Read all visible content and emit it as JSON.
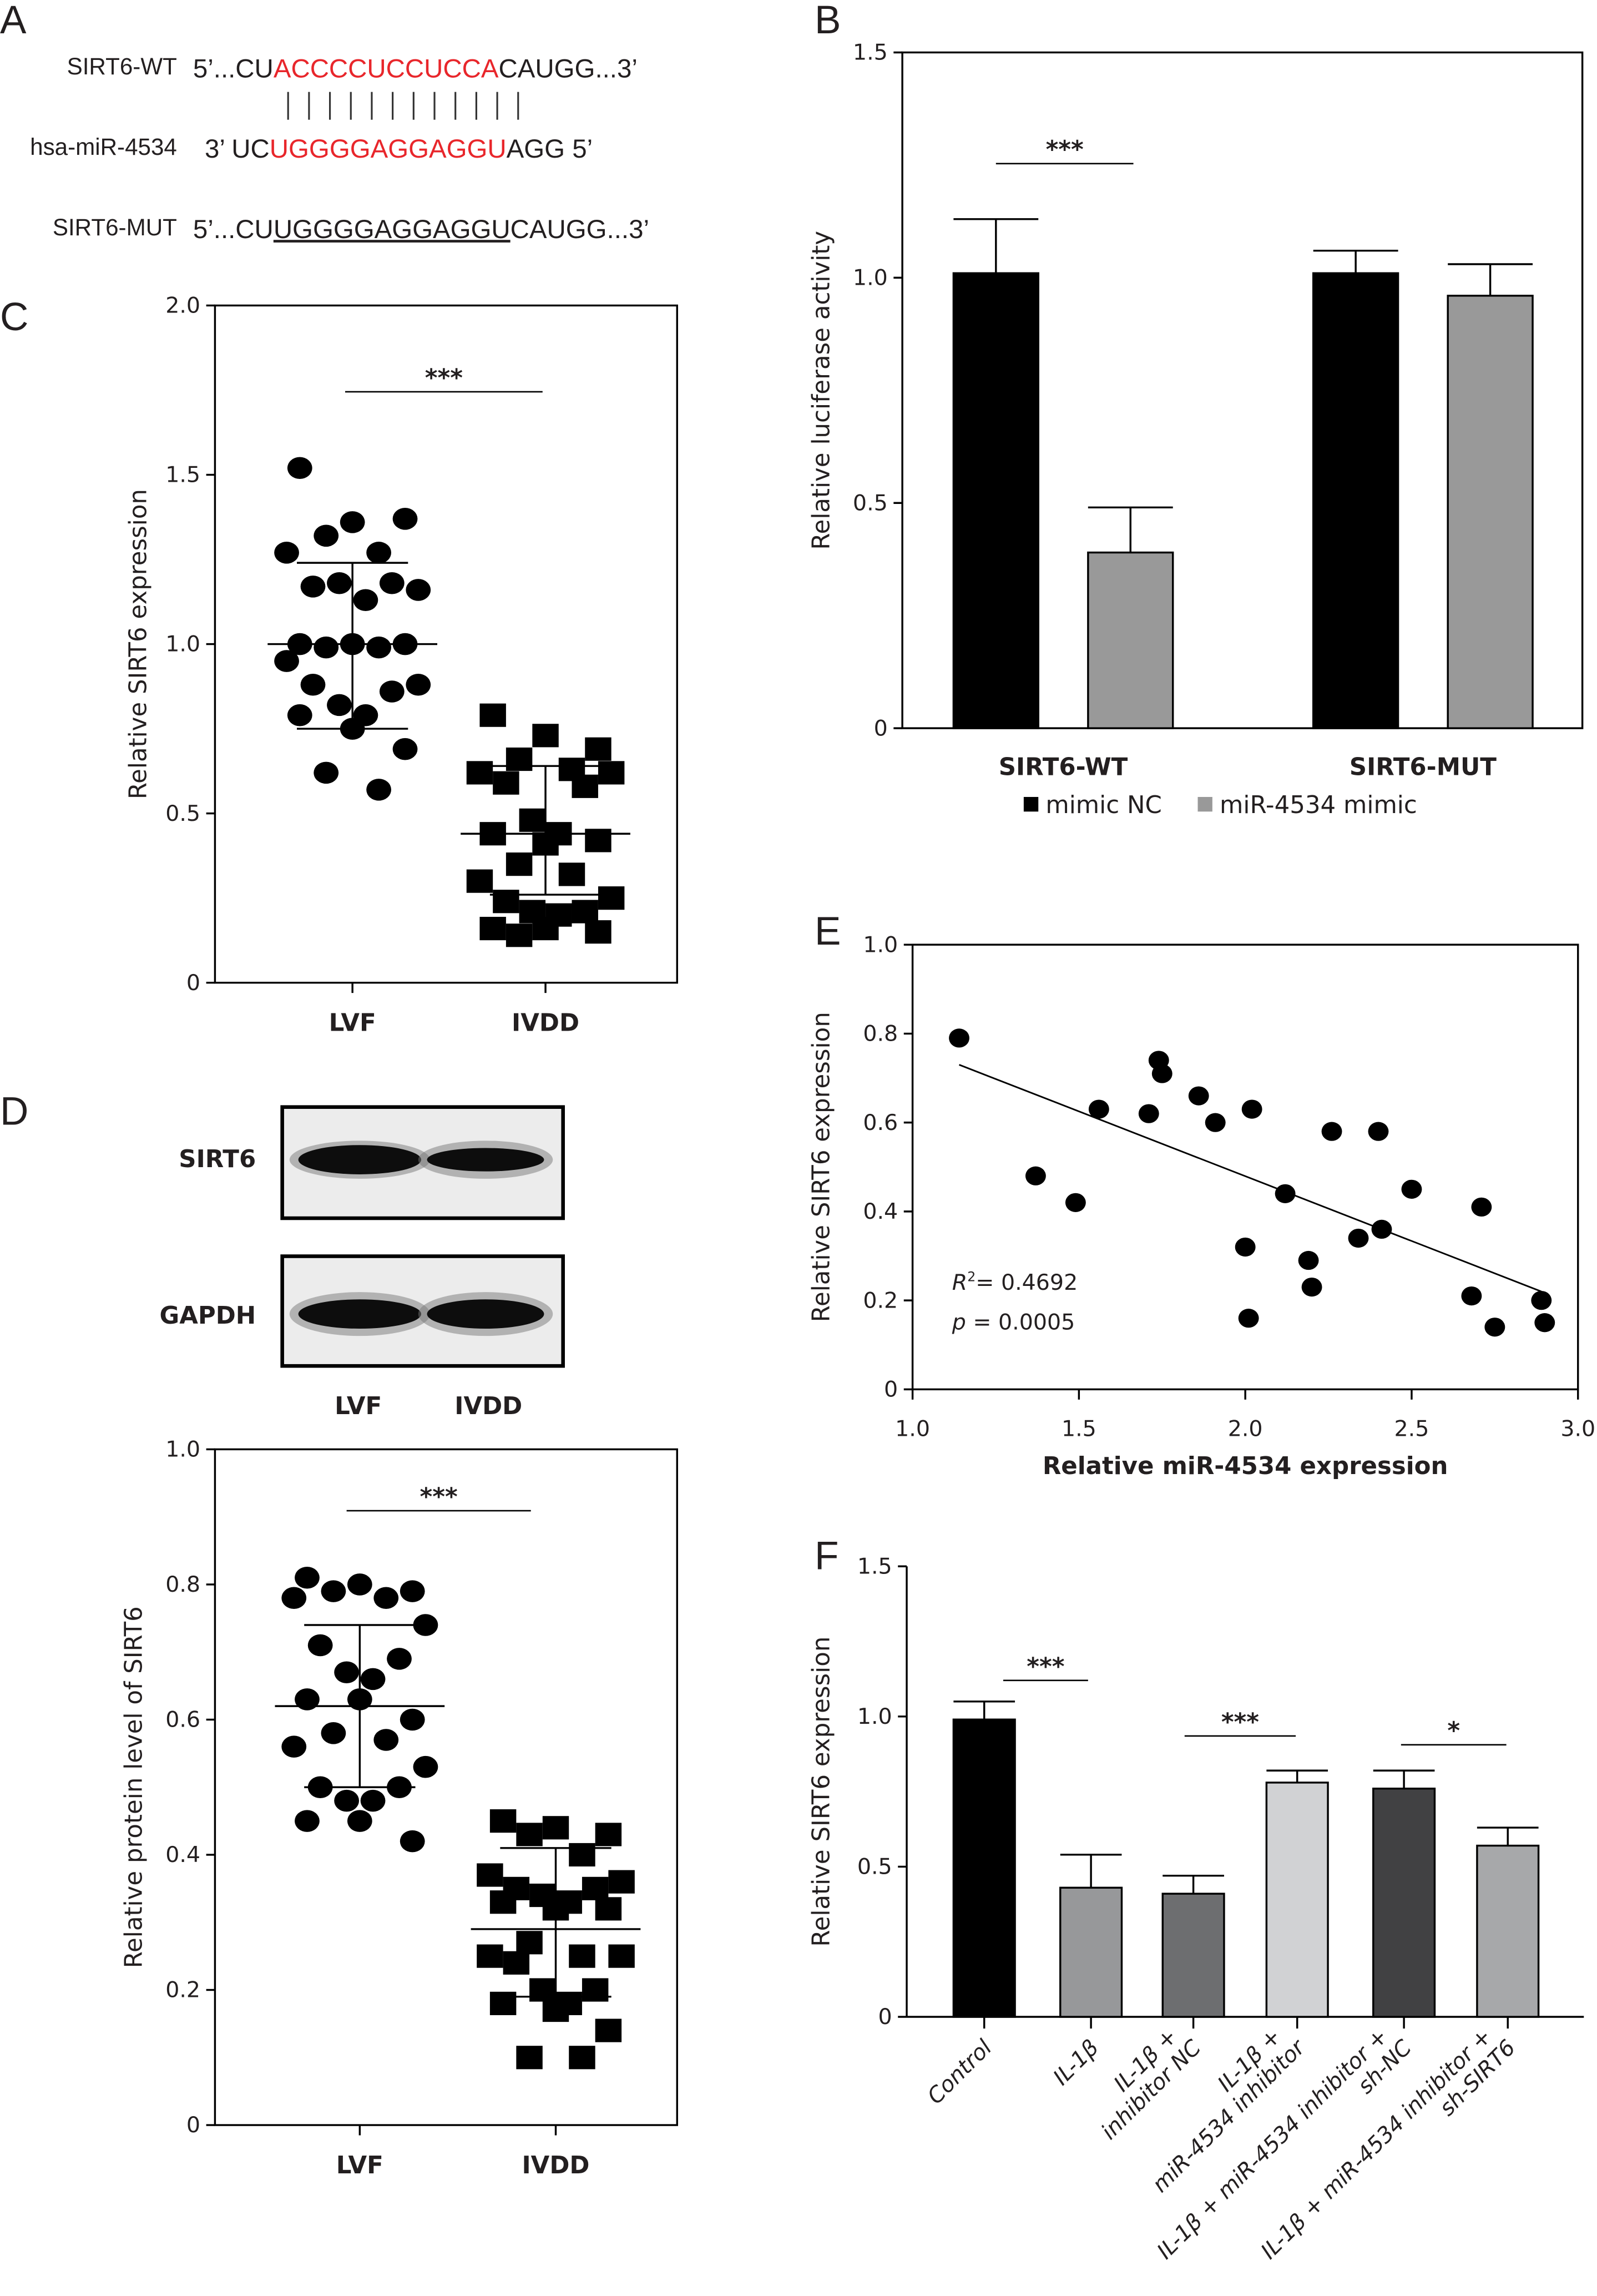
{
  "panel_labels": {
    "A": "A",
    "B": "B",
    "C": "C",
    "D": "D",
    "E": "E",
    "F": "F"
  },
  "panel_a": {
    "rows": [
      {
        "label": "SIRT6-WT",
        "segments": [
          {
            "text": "5’...CU",
            "color": "#231f20"
          },
          {
            "text": "ACCCCUCCUCCA",
            "color": "#e8262b"
          },
          {
            "text": "CAUGG...3’",
            "color": "#231f20"
          }
        ]
      },
      {
        "label": "hsa-miR-4534",
        "segments": [
          {
            "text": "3’ UC",
            "color": "#231f20"
          },
          {
            "text": "UGGGGAGGAGGU",
            "color": "#e8262b"
          },
          {
            "text": "AGG 5’",
            "color": "#231f20"
          }
        ]
      },
      {
        "label": "SIRT6-MUT",
        "segments": [
          {
            "text": "5’...CU",
            "color": "#231f20"
          },
          {
            "text": "UGGGGAGGAGGU",
            "color": "#231f20",
            "underlined": true
          },
          {
            "text": "CAUGG...3’",
            "color": "#231f20"
          }
        ]
      }
    ],
    "pairing_count": 12
  },
  "panel_d_blot": {
    "rows": [
      "SIRT6",
      "GAPDH"
    ],
    "lanes": [
      "LVF",
      "IVDD"
    ]
  },
  "chart_data": [
    {
      "type": "bar",
      "categories": [
        "SIRT6-WT",
        "SIRT6-MUT"
      ],
      "series": [
        {
          "name": "mimic NC",
          "values": [
            1.01,
            1.01
          ],
          "error_upper": [
            1.13,
            1.06
          ],
          "color": "#000000"
        },
        {
          "name": "miR-4534 mimic",
          "values": [
            0.39,
            0.96
          ],
          "error_upper": [
            0.49,
            1.03
          ],
          "color": "#999999"
        }
      ],
      "ylabel": "Relative luciferase activity",
      "ylim": [
        0,
        1.5
      ],
      "yticks": [
        "0",
        "0.5",
        "1.0",
        "1.5"
      ],
      "legend": "bottom",
      "significance": [
        {
          "label": "***",
          "group": "SIRT6-WT",
          "compare": [
            "mimic NC",
            "miR-4534 mimic"
          ]
        }
      ]
    },
    {
      "type": "scatter",
      "categories": [
        "LVF",
        "IVDD"
      ],
      "groups": [
        {
          "name": "LVF",
          "marker": "circle",
          "mean": 1.0,
          "sd_range": [
            0.75,
            1.24
          ],
          "values": [
            1.52,
            1.36,
            1.37,
            1.32,
            1.27,
            1.27,
            1.16,
            1.17,
            1.18,
            1.18,
            1.13,
            1.0,
            1.0,
            1.0,
            0.99,
            0.99,
            0.95,
            0.88,
            0.88,
            0.86,
            0.82,
            0.79,
            0.79,
            0.75,
            0.69,
            0.62,
            0.57
          ]
        },
        {
          "name": "IVDD",
          "marker": "square",
          "mean": 0.44,
          "sd_range": [
            0.26,
            0.64
          ],
          "values": [
            0.79,
            0.73,
            0.69,
            0.66,
            0.63,
            0.62,
            0.62,
            0.59,
            0.58,
            0.48,
            0.44,
            0.44,
            0.41,
            0.42,
            0.35,
            0.32,
            0.3,
            0.25,
            0.24,
            0.21,
            0.21,
            0.2,
            0.16,
            0.16,
            0.15,
            0.14
          ]
        }
      ],
      "ylabel": "Relative SIRT6 expression",
      "ylim": [
        0,
        2.0
      ],
      "yticks": [
        "0",
        "0.5",
        "1.0",
        "1.5",
        "2.0"
      ],
      "significance": [
        {
          "label": "***",
          "compare": [
            "LVF",
            "IVDD"
          ]
        }
      ]
    },
    {
      "type": "scatter",
      "categories": [
        "LVF",
        "IVDD"
      ],
      "groups": [
        {
          "name": "LVF",
          "marker": "circle",
          "mean": 0.62,
          "sd_range": [
            0.5,
            0.74
          ],
          "values": [
            0.81,
            0.8,
            0.79,
            0.79,
            0.78,
            0.78,
            0.74,
            0.71,
            0.69,
            0.67,
            0.66,
            0.63,
            0.63,
            0.6,
            0.58,
            0.57,
            0.56,
            0.53,
            0.5,
            0.5,
            0.48,
            0.48,
            0.45,
            0.45,
            0.42
          ]
        },
        {
          "name": "IVDD",
          "marker": "square",
          "mean": 0.29,
          "sd_range": [
            0.19,
            0.41
          ],
          "values": [
            0.45,
            0.44,
            0.43,
            0.43,
            0.4,
            0.37,
            0.36,
            0.35,
            0.35,
            0.34,
            0.33,
            0.33,
            0.32,
            0.32,
            0.27,
            0.25,
            0.25,
            0.25,
            0.24,
            0.2,
            0.2,
            0.18,
            0.18,
            0.17,
            0.14,
            0.1,
            0.1
          ]
        }
      ],
      "ylabel": "Relative protein level of SIRT6",
      "ylim": [
        0,
        1.0
      ],
      "yticks": [
        "0",
        "0.2",
        "0.4",
        "0.6",
        "0.8",
        "1.0"
      ],
      "significance": [
        {
          "label": "***",
          "compare": [
            "LVF",
            "IVDD"
          ]
        }
      ]
    },
    {
      "type": "scatter",
      "points": [
        [
          1.14,
          0.79
        ],
        [
          1.37,
          0.48
        ],
        [
          1.49,
          0.42
        ],
        [
          1.56,
          0.63
        ],
        [
          1.71,
          0.62
        ],
        [
          1.74,
          0.74
        ],
        [
          1.75,
          0.71
        ],
        [
          1.86,
          0.66
        ],
        [
          1.91,
          0.6
        ],
        [
          2.02,
          0.63
        ],
        [
          2.0,
          0.32
        ],
        [
          2.01,
          0.16
        ],
        [
          2.12,
          0.44
        ],
        [
          2.19,
          0.29
        ],
        [
          2.2,
          0.23
        ],
        [
          2.26,
          0.58
        ],
        [
          2.34,
          0.34
        ],
        [
          2.4,
          0.58
        ],
        [
          2.41,
          0.36
        ],
        [
          2.5,
          0.45
        ],
        [
          2.68,
          0.21
        ],
        [
          2.71,
          0.41
        ],
        [
          2.75,
          0.14
        ],
        [
          2.89,
          0.2
        ],
        [
          2.9,
          0.15
        ]
      ],
      "fit_line": {
        "x": [
          1.14,
          2.89
        ],
        "y": [
          0.73,
          0.22
        ]
      },
      "xlabel": "Relative miR-4534 expression",
      "ylabel": "Relative SIRT6 expression",
      "xlim": [
        1.0,
        3.0
      ],
      "ylim": [
        0,
        1.0
      ],
      "xticks": [
        "1.0",
        "1.5",
        "2.0",
        "2.5",
        "3.0"
      ],
      "yticks": [
        "0",
        "0.2",
        "0.4",
        "0.6",
        "0.8",
        "1.0"
      ],
      "annotation": {
        "r_symbol": "R",
        "r_superscript": "2",
        "r2_text": "= 0.4692",
        "p_symbol": "p",
        "p_text": "= 0.0005"
      }
    },
    {
      "type": "bar",
      "categories": [
        [
          "Control"
        ],
        [
          "IL-1β"
        ],
        [
          "IL-1β +",
          "inhibitor NC"
        ],
        [
          "IL-1β +",
          "miR-4534 inhibitor"
        ],
        [
          "IL-1β + miR-4534 inhibitor +",
          "sh-NC"
        ],
        [
          "IL-1β + miR-4534 inhibitor +",
          "sh-SIRT6"
        ]
      ],
      "values": [
        0.99,
        0.43,
        0.41,
        0.78,
        0.76,
        0.57
      ],
      "error_upper": [
        1.05,
        0.54,
        0.47,
        0.82,
        0.82,
        0.63
      ],
      "colors": [
        "#000000",
        "#97989a",
        "#6d6e70",
        "#d1d2d4",
        "#414143",
        "#a7a8aa"
      ],
      "ylabel": "Relative SIRT6 expression",
      "ylim": [
        0,
        1.5
      ],
      "yticks": [
        "0",
        "0.5",
        "1.0",
        "1.5"
      ],
      "significance": [
        {
          "label": "***",
          "compare": [
            0,
            1
          ]
        },
        {
          "label": "***",
          "compare": [
            2,
            3
          ]
        },
        {
          "label": "*",
          "compare": [
            4,
            5
          ]
        }
      ]
    }
  ]
}
